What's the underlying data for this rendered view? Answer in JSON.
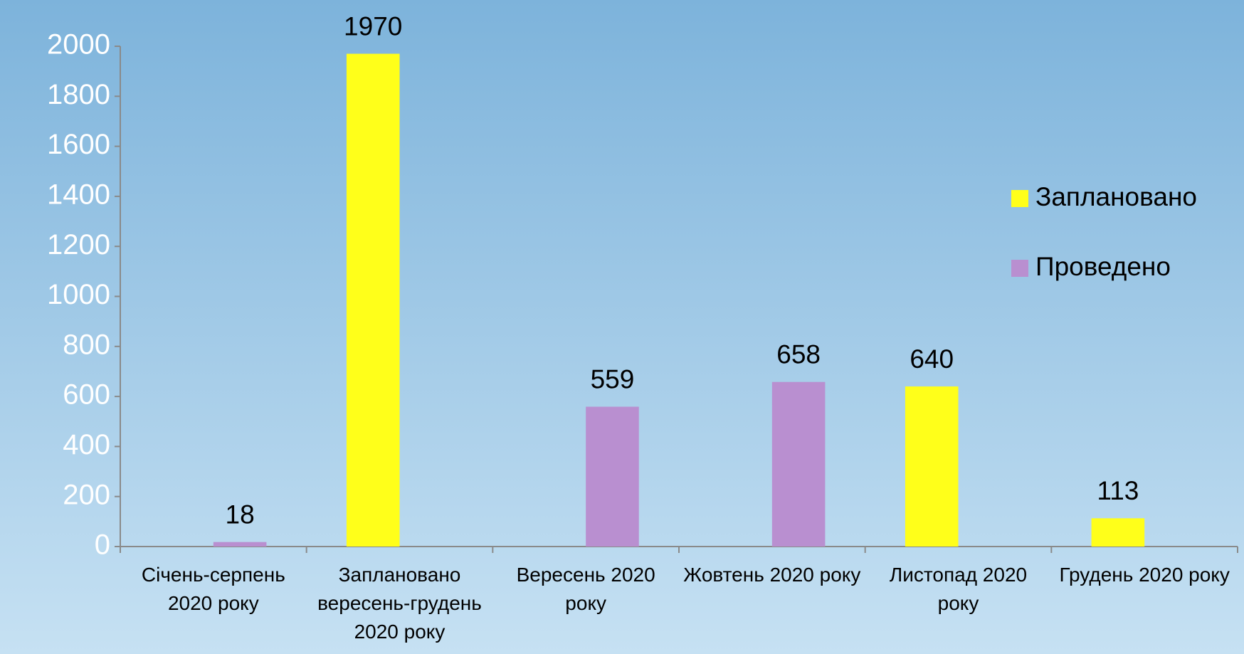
{
  "chart_data": {
    "type": "bar",
    "categories": [
      "Січень-серпень 2020 року",
      "Заплановано вересень-грудень 2020 року",
      "Вересень 2020 року",
      "Жовтень 2020 року",
      "Листопад 2020 року",
      "Грудень 2020 року"
    ],
    "series": [
      {
        "name": "Заплановано",
        "color": "#ffff1a",
        "values": [
          null,
          1970,
          null,
          null,
          640,
          113
        ]
      },
      {
        "name": "Проведено",
        "color": "#b98fd0",
        "values": [
          18,
          null,
          559,
          658,
          null,
          null
        ]
      }
    ],
    "ylim": [
      0,
      2000
    ],
    "yticks": [
      0,
      200,
      400,
      600,
      800,
      1000,
      1200,
      1400,
      1600,
      1800,
      2000
    ],
    "legend": "right"
  }
}
